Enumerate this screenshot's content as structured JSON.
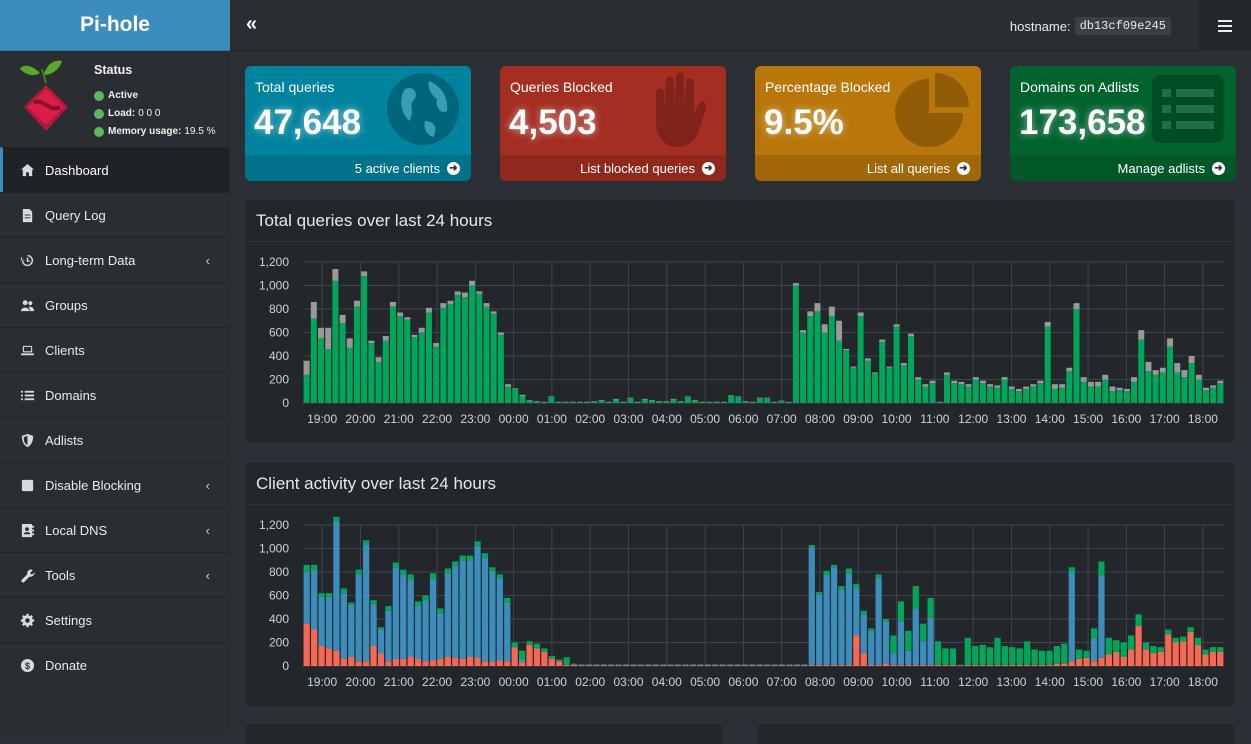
{
  "brand": "Pi-hole",
  "status": {
    "title": "Status",
    "active": "Active",
    "load_label": "Load:",
    "load_value": "0  0  0",
    "memory_label": "Memory usage:",
    "memory_value": "19.5 %"
  },
  "menu": [
    {
      "label": "Dashboard",
      "icon": "home-icon",
      "active": true
    },
    {
      "label": "Query Log",
      "icon": "file-icon"
    },
    {
      "label": "Long-term Data",
      "icon": "history-icon",
      "chevron": true
    },
    {
      "label": "Groups",
      "icon": "users-icon"
    },
    {
      "label": "Clients",
      "icon": "laptop-icon"
    },
    {
      "label": "Domains",
      "icon": "list-icon"
    },
    {
      "label": "Adlists",
      "icon": "shield-icon"
    },
    {
      "label": "Disable Blocking",
      "icon": "stop-icon",
      "chevron": true
    },
    {
      "label": "Local DNS",
      "icon": "address-book-icon",
      "chevron": true
    },
    {
      "label": "Tools",
      "icon": "wrench-icon",
      "chevron": true
    },
    {
      "label": "Settings",
      "icon": "gear-icon"
    },
    {
      "label": "Donate",
      "icon": "money-icon"
    }
  ],
  "topbar": {
    "collapse": "«",
    "hostname_label": "hostname:",
    "hostname_value": "db13cf09e245"
  },
  "stats": [
    {
      "title": "Total queries",
      "value": "47,648",
      "link": "5 active clients",
      "color": "#00839f",
      "icon": "globe-icon"
    },
    {
      "title": "Queries Blocked",
      "value": "4,503",
      "link": "List blocked queries",
      "color": "#a42e22",
      "icon": "hand-icon"
    },
    {
      "title": "Percentage Blocked",
      "value": "9.5%",
      "link": "List all queries",
      "color": "#b9760a",
      "icon": "pie-chart-icon"
    },
    {
      "title": "Domains on Adlists",
      "value": "173,658",
      "link": "Manage adlists",
      "color": "#00632e",
      "icon": "list-alt-icon"
    }
  ],
  "colors": {
    "permitted": "#00a65a",
    "blocked": "#999999",
    "client_blue": "#3c8dbc",
    "client_red": "#f56954",
    "client_green": "#00a65a"
  },
  "chart_data": [
    {
      "type": "bar",
      "title": "Total queries over last 24 hours",
      "xlabel": "",
      "ylabel": "",
      "ylim": [
        0,
        1200
      ],
      "yticks": [
        "0",
        "200",
        "400",
        "600",
        "800",
        "1,000",
        "1,200"
      ],
      "xticks": [
        "19:00",
        "20:00",
        "21:00",
        "22:00",
        "23:00",
        "00:00",
        "01:00",
        "02:00",
        "03:00",
        "04:00",
        "05:00",
        "06:00",
        "07:00",
        "08:00",
        "09:00",
        "10:00",
        "11:00",
        "12:00",
        "13:00",
        "14:00",
        "15:00",
        "16:00",
        "17:00",
        "18:00"
      ],
      "grid": true,
      "stacked": true,
      "series": [
        {
          "values": [
            240,
            720,
            550,
            460,
            1040,
            680,
            470,
            820,
            1080,
            510,
            350,
            530,
            820,
            740,
            710,
            560,
            600,
            770,
            480,
            810,
            840,
            920,
            900,
            1000,
            930,
            820,
            760,
            580,
            140,
            120,
            60,
            20,
            10,
            5,
            50,
            5,
            5,
            5,
            5,
            5,
            10,
            20,
            5,
            30,
            5,
            40,
            5,
            30,
            20,
            10,
            10,
            30,
            10,
            50,
            20,
            5,
            5,
            5,
            5,
            60,
            50,
            10,
            5,
            40,
            40,
            5,
            15,
            5,
            1000,
            600,
            740,
            780,
            600,
            740,
            530,
            450,
            300,
            740,
            360,
            250,
            520,
            300,
            650,
            320,
            570,
            200,
            140,
            170,
            5,
            240,
            170,
            160,
            140,
            200,
            170,
            140,
            130,
            200,
            120,
            100,
            120,
            140,
            170,
            650,
            120,
            130,
            270,
            800,
            180,
            140,
            140,
            200,
            100,
            110,
            100,
            180,
            540,
            270,
            240,
            260,
            480,
            260,
            220,
            340,
            200,
            110,
            130,
            170
          ]
        },
        {
          "values": [
            120,
            140,
            90,
            180,
            100,
            70,
            80,
            50,
            40,
            20,
            40,
            40,
            40,
            30,
            20,
            20,
            40,
            40,
            30,
            40,
            30,
            30,
            40,
            40,
            20,
            30,
            20,
            20,
            20,
            5,
            10,
            5,
            5,
            5,
            5,
            5,
            5,
            5,
            5,
            5,
            5,
            5,
            5,
            5,
            5,
            5,
            5,
            5,
            5,
            5,
            5,
            5,
            5,
            5,
            5,
            5,
            5,
            5,
            5,
            5,
            5,
            5,
            5,
            5,
            5,
            5,
            5,
            5,
            20,
            20,
            40,
            70,
            70,
            80,
            170,
            10,
            10,
            30,
            20,
            10,
            20,
            10,
            20,
            20,
            20,
            20,
            20,
            20,
            5,
            20,
            20,
            20,
            20,
            20,
            20,
            20,
            20,
            20,
            20,
            20,
            20,
            20,
            20,
            40,
            40,
            30,
            30,
            50,
            40,
            40,
            40,
            40,
            40,
            20,
            20,
            40,
            80,
            80,
            40,
            40,
            70,
            80,
            60,
            60,
            40,
            20,
            20,
            20
          ]
        }
      ]
    },
    {
      "type": "bar",
      "title": "Client activity over last 24 hours",
      "xlabel": "",
      "ylabel": "",
      "ylim": [
        0,
        1200
      ],
      "yticks": [
        "0",
        "200",
        "400",
        "600",
        "800",
        "1,000",
        "1,200"
      ],
      "xticks": [
        "19:00",
        "20:00",
        "21:00",
        "22:00",
        "23:00",
        "00:00",
        "01:00",
        "02:00",
        "03:00",
        "04:00",
        "05:00",
        "06:00",
        "07:00",
        "08:00",
        "09:00",
        "10:00",
        "11:00",
        "12:00",
        "13:00",
        "14:00",
        "15:00",
        "16:00",
        "17:00",
        "18:00"
      ],
      "grid": true,
      "stacked": true,
      "series": [
        {
          "values": [
            360,
            310,
            170,
            150,
            130,
            60,
            80,
            40,
            40,
            170,
            110,
            40,
            60,
            60,
            80,
            60,
            40,
            50,
            60,
            80,
            70,
            60,
            80,
            70,
            40,
            40,
            50,
            40,
            160,
            30,
            180,
            150,
            120,
            60,
            40,
            10,
            10,
            5,
            5,
            5,
            5,
            5,
            5,
            5,
            5,
            5,
            5,
            5,
            5,
            5,
            5,
            5,
            5,
            5,
            5,
            5,
            5,
            5,
            5,
            5,
            5,
            5,
            5,
            5,
            5,
            5,
            5,
            5,
            10,
            10,
            10,
            10,
            10,
            10,
            260,
            110,
            10,
            10,
            20,
            10,
            10,
            10,
            10,
            10,
            10,
            10,
            10,
            10,
            5,
            10,
            10,
            10,
            10,
            10,
            10,
            10,
            10,
            10,
            10,
            10,
            10,
            20,
            20,
            40,
            60,
            70,
            40,
            70,
            100,
            120,
            80,
            140,
            340,
            140,
            110,
            120,
            270,
            200,
            210,
            290,
            180,
            100,
            120,
            120
          ]
        },
        {
          "values": [
            440,
            510,
            420,
            440,
            1100,
            560,
            440,
            740,
            990,
            360,
            200,
            430,
            780,
            720,
            660,
            450,
            520,
            690,
            390,
            710,
            780,
            840,
            820,
            950,
            880,
            770,
            700,
            500,
            0,
            30,
            0,
            0,
            0,
            5,
            5,
            5,
            5,
            5,
            5,
            5,
            5,
            5,
            5,
            5,
            5,
            5,
            5,
            5,
            5,
            5,
            5,
            5,
            5,
            5,
            5,
            5,
            5,
            5,
            5,
            5,
            5,
            5,
            5,
            5,
            5,
            5,
            5,
            5,
            1000,
            600,
            760,
            830,
            640,
            780,
            400,
            330,
            290,
            740,
            360,
            100,
            370,
            120,
            480,
            200,
            400,
            0,
            0,
            0,
            0,
            0,
            0,
            0,
            0,
            0,
            0,
            0,
            0,
            0,
            0,
            0,
            0,
            0,
            0,
            760,
            0,
            0,
            200,
            700,
            0,
            0,
            0,
            0,
            0,
            0,
            0,
            0,
            0,
            0,
            0,
            0,
            0,
            0,
            0,
            0,
            0,
            0,
            0,
            0
          ]
        },
        {
          "values": [
            60,
            40,
            30,
            30,
            40,
            40,
            20,
            40,
            40,
            30,
            20,
            40,
            40,
            40,
            40,
            40,
            40,
            50,
            40,
            40,
            40,
            40,
            40,
            40,
            40,
            30,
            30,
            40,
            40,
            70,
            30,
            40,
            30,
            20,
            10,
            60,
            5,
            5,
            5,
            5,
            5,
            5,
            5,
            5,
            5,
            5,
            5,
            5,
            5,
            5,
            5,
            5,
            5,
            5,
            5,
            5,
            5,
            5,
            5,
            5,
            5,
            5,
            5,
            5,
            5,
            5,
            5,
            5,
            20,
            20,
            40,
            20,
            30,
            40,
            40,
            30,
            20,
            30,
            20,
            150,
            170,
            170,
            190,
            150,
            170,
            200,
            140,
            140,
            5,
            230,
            160,
            170,
            150,
            230,
            160,
            150,
            140,
            200,
            130,
            120,
            120,
            150,
            170,
            40,
            80,
            60,
            80,
            120,
            140,
            100,
            120,
            120,
            100,
            60,
            60,
            40,
            40,
            40,
            40,
            40,
            60,
            40,
            40,
            40,
            40,
            40,
            40,
            40
          ]
        }
      ]
    }
  ]
}
